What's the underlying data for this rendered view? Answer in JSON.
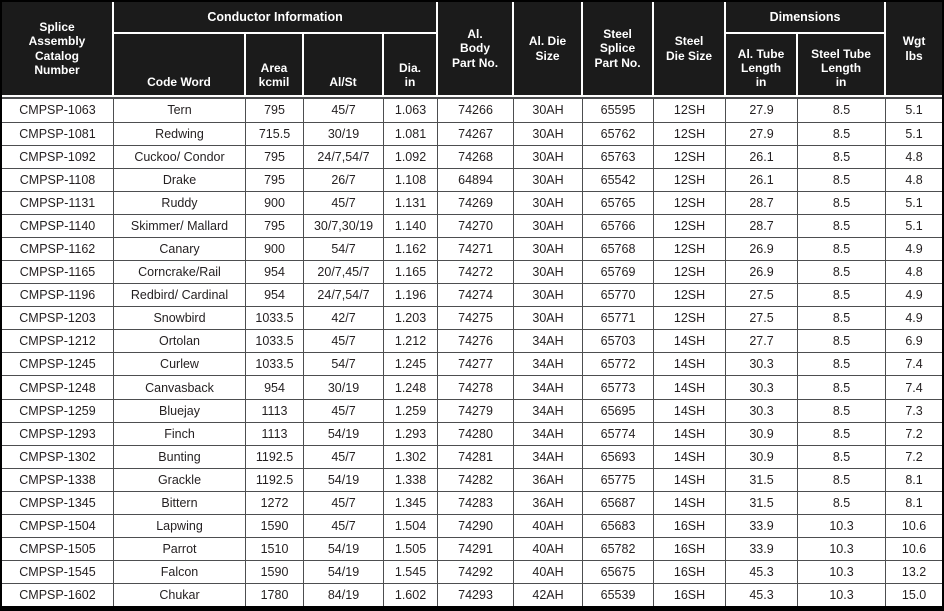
{
  "colors": {
    "header_bg": "#1b1b1b",
    "header_text": "#ffffff",
    "body_text": "#231f20",
    "grid_line": "#4d4e50",
    "outer_border": "#000000"
  },
  "table": {
    "header": {
      "catalog_number": "Splice\nAssembly\nCatalog\nNumber",
      "conductor_information": "Conductor Information",
      "code_word": "Code Word",
      "area": "Area\nkcmil",
      "al_st": "Al/St",
      "dia": "Dia.\nin",
      "al_body_part_no": "Al.\nBody\nPart No.",
      "al_die_size": "Al. Die\nSize",
      "steel_splice_part_no": "Steel\nSplice\nPart No.",
      "steel_die_size": "Steel\nDie Size",
      "dimensions": "Dimensions",
      "al_tube_length": "Al. Tube\nLength\nin",
      "steel_tube_length": "Steel Tube\nLength\nin",
      "wgt": "Wgt\nlbs"
    },
    "column_keys": [
      "cell-catalog-number",
      "cell-code-word",
      "cell-area-kcmil",
      "cell-al-st",
      "cell-dia-in",
      "cell-al-body-part-no",
      "cell-al-die-size",
      "cell-steel-splice-part-no",
      "cell-steel-die-size",
      "cell-al-tube-length",
      "cell-steel-tube-length",
      "cell-wgt-lbs"
    ],
    "rows": [
      [
        "CMPSP-1063",
        "Tern",
        "795",
        "45/7",
        "1.063",
        "74266",
        "30AH",
        "65595",
        "12SH",
        "27.9",
        "8.5",
        "5.1"
      ],
      [
        "CMPSP-1081",
        "Redwing",
        "715.5",
        "30/19",
        "1.081",
        "74267",
        "30AH",
        "65762",
        "12SH",
        "27.9",
        "8.5",
        "5.1"
      ],
      [
        "CMPSP-1092",
        "Cuckoo/ Condor",
        "795",
        "24/7,54/7",
        "1.092",
        "74268",
        "30AH",
        "65763",
        "12SH",
        "26.1",
        "8.5",
        "4.8"
      ],
      [
        "CMPSP-1108",
        "Drake",
        "795",
        "26/7",
        "1.108",
        "64894",
        "30AH",
        "65542",
        "12SH",
        "26.1",
        "8.5",
        "4.8"
      ],
      [
        "CMPSP-1131",
        "Ruddy",
        "900",
        "45/7",
        "1.131",
        "74269",
        "30AH",
        "65765",
        "12SH",
        "28.7",
        "8.5",
        "5.1"
      ],
      [
        "CMPSP-1140",
        "Skimmer/ Mallard",
        "795",
        "30/7,30/19",
        "1.140",
        "74270",
        "30AH",
        "65766",
        "12SH",
        "28.7",
        "8.5",
        "5.1"
      ],
      [
        "CMPSP-1162",
        "Canary",
        "900",
        "54/7",
        "1.162",
        "74271",
        "30AH",
        "65768",
        "12SH",
        "26.9",
        "8.5",
        "4.9"
      ],
      [
        "CMPSP-1165",
        "Corncrake/Rail",
        "954",
        "20/7,45/7",
        "1.165",
        "74272",
        "30AH",
        "65769",
        "12SH",
        "26.9",
        "8.5",
        "4.8"
      ],
      [
        "CMPSP-1196",
        "Redbird/ Cardinal",
        "954",
        "24/7,54/7",
        "1.196",
        "74274",
        "30AH",
        "65770",
        "12SH",
        "27.5",
        "8.5",
        "4.9"
      ],
      [
        "CMPSP-1203",
        "Snowbird",
        "1033.5",
        "42/7",
        "1.203",
        "74275",
        "30AH",
        "65771",
        "12SH",
        "27.5",
        "8.5",
        "4.9"
      ],
      [
        "CMPSP-1212",
        "Ortolan",
        "1033.5",
        "45/7",
        "1.212",
        "74276",
        "34AH",
        "65703",
        "14SH",
        "27.7",
        "8.5",
        "6.9"
      ],
      [
        "CMPSP-1245",
        "Curlew",
        "1033.5",
        "54/7",
        "1.245",
        "74277",
        "34AH",
        "65772",
        "14SH",
        "30.3",
        "8.5",
        "7.4"
      ],
      [
        "CMPSP-1248",
        "Canvasback",
        "954",
        "30/19",
        "1.248",
        "74278",
        "34AH",
        "65773",
        "14SH",
        "30.3",
        "8.5",
        "7.4"
      ],
      [
        "CMPSP-1259",
        "Bluejay",
        "1113",
        "45/7",
        "1.259",
        "74279",
        "34AH",
        "65695",
        "14SH",
        "30.3",
        "8.5",
        "7.3"
      ],
      [
        "CMPSP-1293",
        "Finch",
        "1113",
        "54/19",
        "1.293",
        "74280",
        "34AH",
        "65774",
        "14SH",
        "30.9",
        "8.5",
        "7.2"
      ],
      [
        "CMPSP-1302",
        "Bunting",
        "1192.5",
        "45/7",
        "1.302",
        "74281",
        "34AH",
        "65693",
        "14SH",
        "30.9",
        "8.5",
        "7.2"
      ],
      [
        "CMPSP-1338",
        "Grackle",
        "1192.5",
        "54/19",
        "1.338",
        "74282",
        "36AH",
        "65775",
        "14SH",
        "31.5",
        "8.5",
        "8.1"
      ],
      [
        "CMPSP-1345",
        "Bittern",
        "1272",
        "45/7",
        "1.345",
        "74283",
        "36AH",
        "65687",
        "14SH",
        "31.5",
        "8.5",
        "8.1"
      ],
      [
        "CMPSP-1504",
        "Lapwing",
        "1590",
        "45/7",
        "1.504",
        "74290",
        "40AH",
        "65683",
        "16SH",
        "33.9",
        "10.3",
        "10.6"
      ],
      [
        "CMPSP-1505",
        "Parrot",
        "1510",
        "54/19",
        "1.505",
        "74291",
        "40AH",
        "65782",
        "16SH",
        "33.9",
        "10.3",
        "10.6"
      ],
      [
        "CMPSP-1545",
        "Falcon",
        "1590",
        "54/19",
        "1.545",
        "74292",
        "40AH",
        "65675",
        "16SH",
        "45.3",
        "10.3",
        "13.2"
      ],
      [
        "CMPSP-1602",
        "Chukar",
        "1780",
        "84/19",
        "1.602",
        "74293",
        "42AH",
        "65539",
        "16SH",
        "45.3",
        "10.3",
        "15.0"
      ]
    ]
  }
}
